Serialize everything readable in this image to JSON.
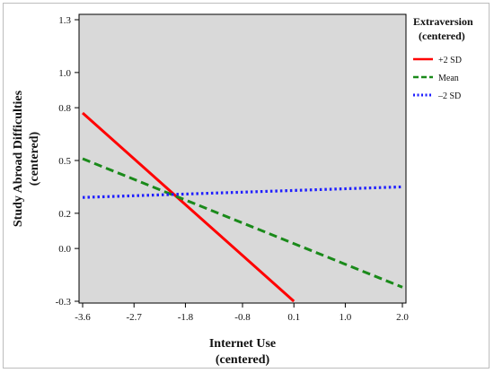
{
  "chart_data": {
    "type": "line",
    "xlabel_lines": [
      "Internet Use",
      "(centered)"
    ],
    "ylabel_lines": [
      "Study Abroad Difficulties",
      "(centered)"
    ],
    "x_ticks": [
      -3.6,
      -2.7,
      -1.8,
      -0.8,
      0.1,
      1.0,
      2.0
    ],
    "x_tick_labels": [
      "-3.6",
      "-2.7",
      "-1.8",
      "-0.8",
      "0.1",
      "1.0",
      "2.0"
    ],
    "y_ticks": [
      -0.3,
      0.0,
      0.2,
      0.5,
      0.8,
      1.0,
      1.3
    ],
    "y_tick_labels": [
      "-0.3",
      "0.0",
      "0.2",
      "0.5",
      "0.8",
      "1.0",
      "1.3"
    ],
    "xlim": [
      -3.6,
      2.0
    ],
    "ylim": [
      -0.3,
      1.3
    ],
    "plot_background": "#d9d9d9",
    "grid": false,
    "legend": {
      "title_lines": [
        "Extraversion",
        "(centered)"
      ],
      "placement": "right, outside plot"
    },
    "series": [
      {
        "name": "+2 SD",
        "color": "#ff0000",
        "dash": "solid",
        "x": [
          -3.6,
          0.1
        ],
        "y": [
          0.77,
          -0.3
        ]
      },
      {
        "name": "Mean",
        "color": "#1a8a1a",
        "dash": "dashed",
        "x": [
          -3.6,
          2.0
        ],
        "y": [
          0.51,
          -0.22
        ]
      },
      {
        "name": "–2 SD",
        "color": "#1f1fff",
        "dash": "dotted",
        "x": [
          -3.6,
          2.0
        ],
        "y": [
          0.29,
          0.35
        ]
      }
    ]
  }
}
